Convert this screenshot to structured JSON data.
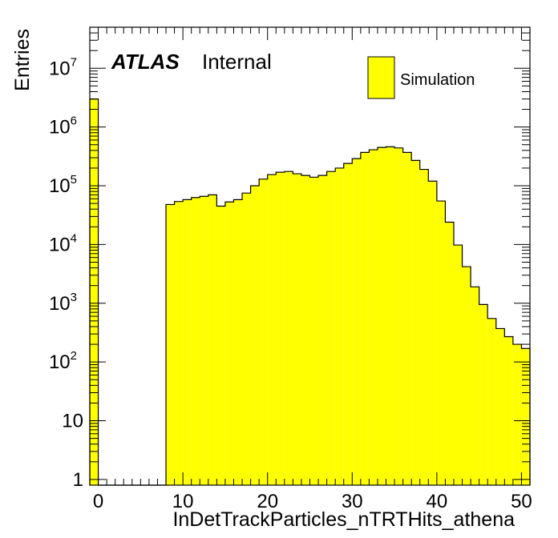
{
  "chart_data": {
    "type": "bar",
    "xlabel": "InDetTrackParticles_nTRTHits_athena",
    "ylabel": "Entries",
    "label_bold": "ATLAS",
    "label_status": "Internal",
    "legend": [
      {
        "name": "Simulation",
        "color": "#ffff00"
      }
    ],
    "fill_color": "#ffff00",
    "edge_color": "#000000",
    "ylog": true,
    "xlim": [
      -1,
      51
    ],
    "ylim": [
      0.8,
      50000000
    ],
    "x_ticks": [
      "0",
      "10",
      "20",
      "30",
      "40",
      "50"
    ],
    "y_ticks": [
      {
        "base": "1",
        "exp": ""
      },
      {
        "base": "10",
        "exp": ""
      },
      {
        "base": "10",
        "exp": "2"
      },
      {
        "base": "10",
        "exp": "3"
      },
      {
        "base": "10",
        "exp": "4"
      },
      {
        "base": "10",
        "exp": "5"
      },
      {
        "base": "10",
        "exp": "6"
      },
      {
        "base": "10",
        "exp": "7"
      }
    ],
    "bin_edges": [
      -1,
      0,
      1,
      2,
      3,
      4,
      5,
      6,
      7,
      8,
      9,
      10,
      11,
      12,
      13,
      14,
      15,
      16,
      17,
      18,
      19,
      20,
      21,
      22,
      23,
      24,
      25,
      26,
      27,
      28,
      29,
      30,
      31,
      32,
      33,
      34,
      35,
      36,
      37,
      38,
      39,
      40,
      41,
      42,
      43,
      44,
      45,
      46,
      47,
      48,
      49,
      50,
      51
    ],
    "values": [
      3000000,
      0,
      0,
      0,
      0,
      0,
      0,
      0,
      0,
      48000,
      54000,
      58000,
      63000,
      66000,
      70000,
      45000,
      53000,
      58000,
      75000,
      100000,
      130000,
      155000,
      170000,
      175000,
      160000,
      150000,
      140000,
      150000,
      175000,
      200000,
      240000,
      290000,
      370000,
      410000,
      450000,
      460000,
      440000,
      370000,
      270000,
      190000,
      120000,
      55000,
      24000,
      9800,
      4200,
      1900,
      950,
      550,
      370,
      270,
      200,
      170
    ]
  }
}
